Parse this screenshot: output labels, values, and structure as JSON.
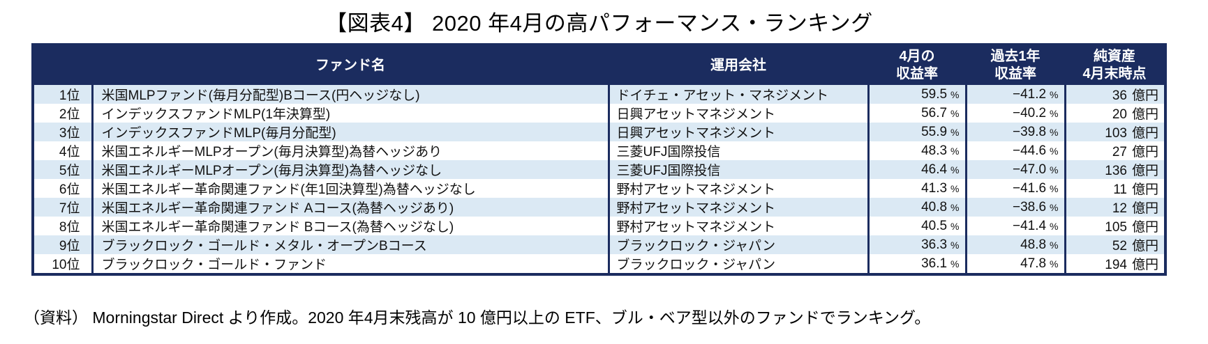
{
  "title": "【図表4】 2020 年4月の高パフォーマンス・ランキング",
  "table": {
    "header": {
      "rank": "",
      "fund": "ファンド名",
      "company": "運用会社",
      "april_line1": "4月の",
      "april_line2": "収益率",
      "year_line1": "過去1年",
      "year_line2": "収益率",
      "assets_line1": "純資産",
      "assets_line2": "4月末時点"
    },
    "units": {
      "percent": "%",
      "oku": "億円"
    },
    "colors": {
      "header_bg": "#1B2C5F",
      "border": "#1B2C5F",
      "stripe_row": "#DBE9F4",
      "header_text": "#FFFFFF"
    },
    "rows": [
      {
        "rank": "1位",
        "fund": "米国MLPファンド(毎月分配型)Bコース(円ヘッジなし)",
        "company": "ドイチェ・アセット・マネジメント",
        "april": "59.5",
        "year": "−41.2",
        "assets": "36"
      },
      {
        "rank": "2位",
        "fund": "インデックスファンドMLP(1年決算型)",
        "company": "日興アセットマネジメント",
        "april": "56.7",
        "year": "−40.2",
        "assets": "20"
      },
      {
        "rank": "3位",
        "fund": "インデックスファンドMLP(毎月分配型)",
        "company": "日興アセットマネジメント",
        "april": "55.9",
        "year": "−39.8",
        "assets": "103"
      },
      {
        "rank": "4位",
        "fund": "米国エネルギーMLPオープン(毎月決算型)為替ヘッジあり",
        "company": "三菱UFJ国際投信",
        "april": "48.3",
        "year": "−44.6",
        "assets": "27"
      },
      {
        "rank": "5位",
        "fund": "米国エネルギーMLPオープン(毎月決算型)為替ヘッジなし",
        "company": "三菱UFJ国際投信",
        "april": "46.4",
        "year": "−47.0",
        "assets": "136"
      },
      {
        "rank": "6位",
        "fund": "米国エネルギー革命関連ファンド(年1回決算型)為替ヘッジなし",
        "company": "野村アセットマネジメント",
        "april": "41.3",
        "year": "−41.6",
        "assets": "11"
      },
      {
        "rank": "7位",
        "fund": "米国エネルギー革命関連ファンド Aコース(為替ヘッジあり)",
        "company": "野村アセットマネジメント",
        "april": "40.8",
        "year": "−38.6",
        "assets": "12"
      },
      {
        "rank": "8位",
        "fund": "米国エネルギー革命関連ファンド Bコース(為替ヘッジなし)",
        "company": "野村アセットマネジメント",
        "april": "40.5",
        "year": "−41.4",
        "assets": "105"
      },
      {
        "rank": "9位",
        "fund": "ブラックロック・ゴールド・メタル・オープンBコース",
        "company": "ブラックロック・ジャパン",
        "april": "36.3",
        "year": "48.8",
        "assets": "52"
      },
      {
        "rank": "10位",
        "fund": "ブラックロック・ゴールド・ファンド",
        "company": "ブラックロック・ジャパン",
        "april": "36.1",
        "year": "47.8",
        "assets": "194"
      }
    ]
  },
  "footnote": "（資料） Morningstar Direct より作成。2020 年4月末残高が 10 億円以上の ETF、ブル・ベア型以外のファンドでランキング。"
}
